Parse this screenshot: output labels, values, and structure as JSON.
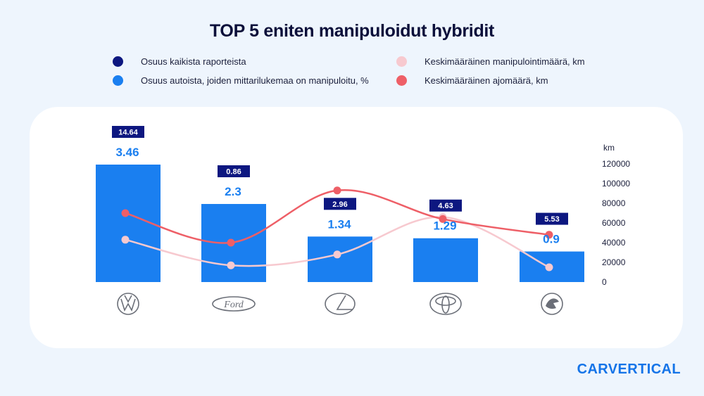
{
  "title": "TOP 5 eniten manipuloidut hybridit",
  "legend": [
    {
      "label": "Osuus kaikista raporteista",
      "color": "#0d1780"
    },
    {
      "label": "Osuus autoista, joiden mittarilukemaa on manipuloitu, %",
      "color": "#1a7ff0"
    },
    {
      "label": "Keskimääräinen manipulointimäärä, km",
      "color": "#f7c9cf"
    },
    {
      "label": "Keskimääräinen ajomäärä, km",
      "color": "#ee5f67"
    }
  ],
  "brand": "CARVERTICAL",
  "chart_data": {
    "type": "bar",
    "categories": [
      "Volkswagen",
      "Ford",
      "Lexus",
      "Toyota",
      "Škoda"
    ],
    "category_icons": [
      "volkswagen-logo-icon",
      "ford-logo-icon",
      "lexus-logo-icon",
      "toyota-logo-icon",
      "skoda-logo-icon"
    ],
    "series": [
      {
        "name": "Osuus kaikista raporteista",
        "values": [
          14.64,
          0.86,
          2.96,
          4.63,
          5.53
        ],
        "labels": [
          "14.64",
          "0.86",
          "2.96",
          "4.63",
          "5.53"
        ],
        "color": "#0d1780"
      },
      {
        "name": "Osuus autoista, joiden mittarilukemaa on manipuloitu, %",
        "values": [
          3.46,
          2.3,
          1.34,
          1.29,
          0.9
        ],
        "labels": [
          "3.46",
          "2.3",
          "1.34",
          "1.29",
          "0.9"
        ],
        "color": "#1a7ff0"
      },
      {
        "name": "Keskimääräinen manipulointimäärä, km",
        "values": [
          43000,
          17000,
          28000,
          66000,
          15000
        ],
        "color": "#f7c9cf",
        "axis": "right"
      },
      {
        "name": "Keskimääräinen ajomäärä, km",
        "values": [
          70000,
          40000,
          93000,
          64000,
          48000
        ],
        "color": "#ee5f67",
        "axis": "right"
      }
    ],
    "bar_ylim": [
      0,
      4
    ],
    "y2label": "km",
    "y2ticks": [
      "0",
      "20000",
      "40000",
      "60000",
      "80000",
      "100000",
      "120000"
    ],
    "y2lim": [
      0,
      120000
    ]
  }
}
